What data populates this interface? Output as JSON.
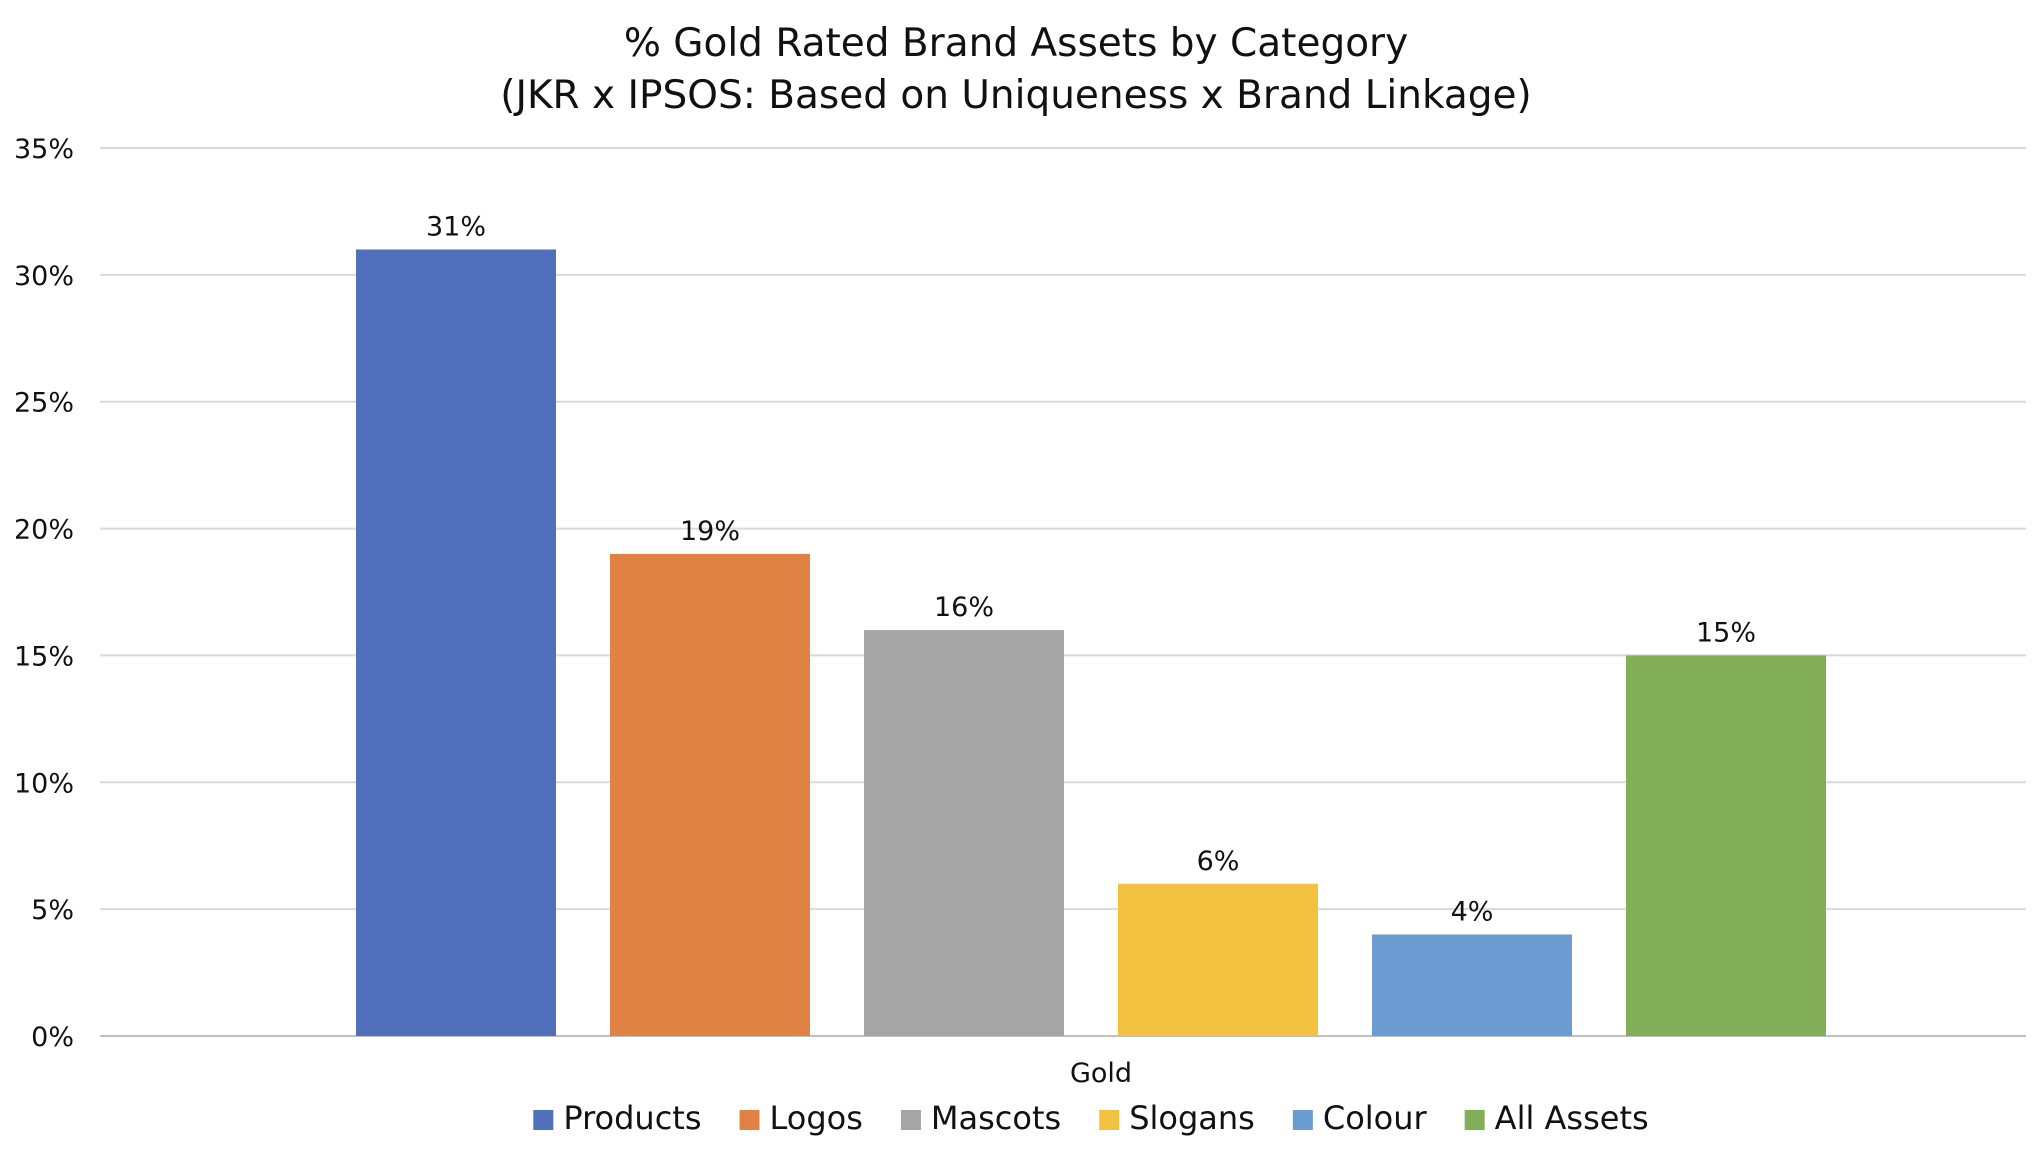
{
  "chart_data": {
    "type": "bar",
    "title": "% Gold Rated Brand Assets by Category",
    "subtitle": "(JKR x IPSOS: Based on Uniqueness x Brand Linkage)",
    "categories": [
      "Gold"
    ],
    "series": [
      {
        "name": "Products",
        "values": [
          31
        ],
        "color": "#5170BC",
        "label": "31%"
      },
      {
        "name": "Logos",
        "values": [
          19
        ],
        "color": "#E08244",
        "label": "19%"
      },
      {
        "name": "Mascots",
        "values": [
          16
        ],
        "color": "#A5A5A5",
        "label": "16%"
      },
      {
        "name": "Slogans",
        "values": [
          6
        ],
        "color": "#F3C140",
        "label": "6%"
      },
      {
        "name": "Colour",
        "values": [
          4
        ],
        "color": "#6C9BD2",
        "label": "4%"
      },
      {
        "name": "All Assets",
        "values": [
          15
        ],
        "color": "#81AE57",
        "label": "15%"
      }
    ],
    "xlabel": "",
    "ylabel": "",
    "ylim": [
      0,
      35
    ],
    "yticks": [
      {
        "value": 0,
        "label": "0%"
      },
      {
        "value": 5,
        "label": "5%"
      },
      {
        "value": 10,
        "label": "10%"
      },
      {
        "value": 15,
        "label": "15%"
      },
      {
        "value": 20,
        "label": "20%"
      },
      {
        "value": 25,
        "label": "25%"
      },
      {
        "value": 30,
        "label": "30%"
      },
      {
        "value": 35,
        "label": "35%"
      }
    ],
    "grid": true,
    "legend_position": "bottom"
  }
}
